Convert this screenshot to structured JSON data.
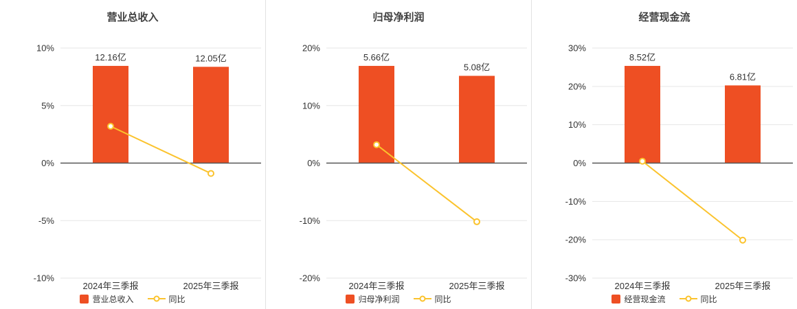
{
  "colors": {
    "bar": "#ee4f23",
    "line": "#fbc32d",
    "grid": "#e6e6e6",
    "zero_axis": "#555555",
    "text": "#333333",
    "title": "#404040"
  },
  "chart_data": [
    {
      "type": "bar",
      "title": "营业总收入",
      "categories": [
        "2024年三季报",
        "2025年三季报"
      ],
      "bar_series": {
        "name": "营业总收入",
        "unit": "亿",
        "values": [
          12.16,
          12.05
        ],
        "labels": [
          "12.16亿",
          "12.05亿"
        ]
      },
      "line_series": {
        "name": "同比",
        "values_pct": [
          3.2,
          -0.9
        ]
      },
      "y_axis": {
        "ylim": [
          -10,
          10
        ],
        "tick_values": [
          10,
          5,
          0,
          -5,
          -10
        ],
        "tick_labels": [
          "10%",
          "5%",
          "0%",
          "-5%",
          "-10%"
        ]
      },
      "bar_top_pct": [
        8.45,
        8.37
      ],
      "grid": true,
      "legend_position": "bottom"
    },
    {
      "type": "bar",
      "title": "归母净利润",
      "categories": [
        "2024年三季报",
        "2025年三季报"
      ],
      "bar_series": {
        "name": "归母净利润",
        "unit": "亿",
        "values": [
          5.66,
          5.08
        ],
        "labels": [
          "5.66亿",
          "5.08亿"
        ]
      },
      "line_series": {
        "name": "同比",
        "values_pct": [
          3.2,
          -10.2
        ]
      },
      "y_axis": {
        "ylim": [
          -20,
          20
        ],
        "tick_values": [
          20,
          10,
          0,
          -10,
          -20
        ],
        "tick_labels": [
          "20%",
          "10%",
          "0%",
          "-10%",
          "-20%"
        ]
      },
      "bar_top_pct": [
        16.9,
        15.17
      ],
      "grid": true,
      "legend_position": "bottom"
    },
    {
      "type": "bar",
      "title": "经营现金流",
      "categories": [
        "2024年三季报",
        "2025年三季报"
      ],
      "bar_series": {
        "name": "经营现金流",
        "unit": "亿",
        "values": [
          8.52,
          6.81
        ],
        "labels": [
          "8.52亿",
          "6.81亿"
        ]
      },
      "line_series": {
        "name": "同比",
        "values_pct": [
          0.5,
          -20.1
        ]
      },
      "y_axis": {
        "ylim": [
          -30,
          30
        ],
        "tick_values": [
          30,
          20,
          10,
          0,
          -10,
          -20,
          -30
        ],
        "tick_labels": [
          "30%",
          "20%",
          "10%",
          "0%",
          "-10%",
          "-20%",
          "-30%"
        ]
      },
      "bar_top_pct": [
        25.35,
        20.26
      ],
      "grid": true,
      "legend_position": "bottom"
    }
  ]
}
